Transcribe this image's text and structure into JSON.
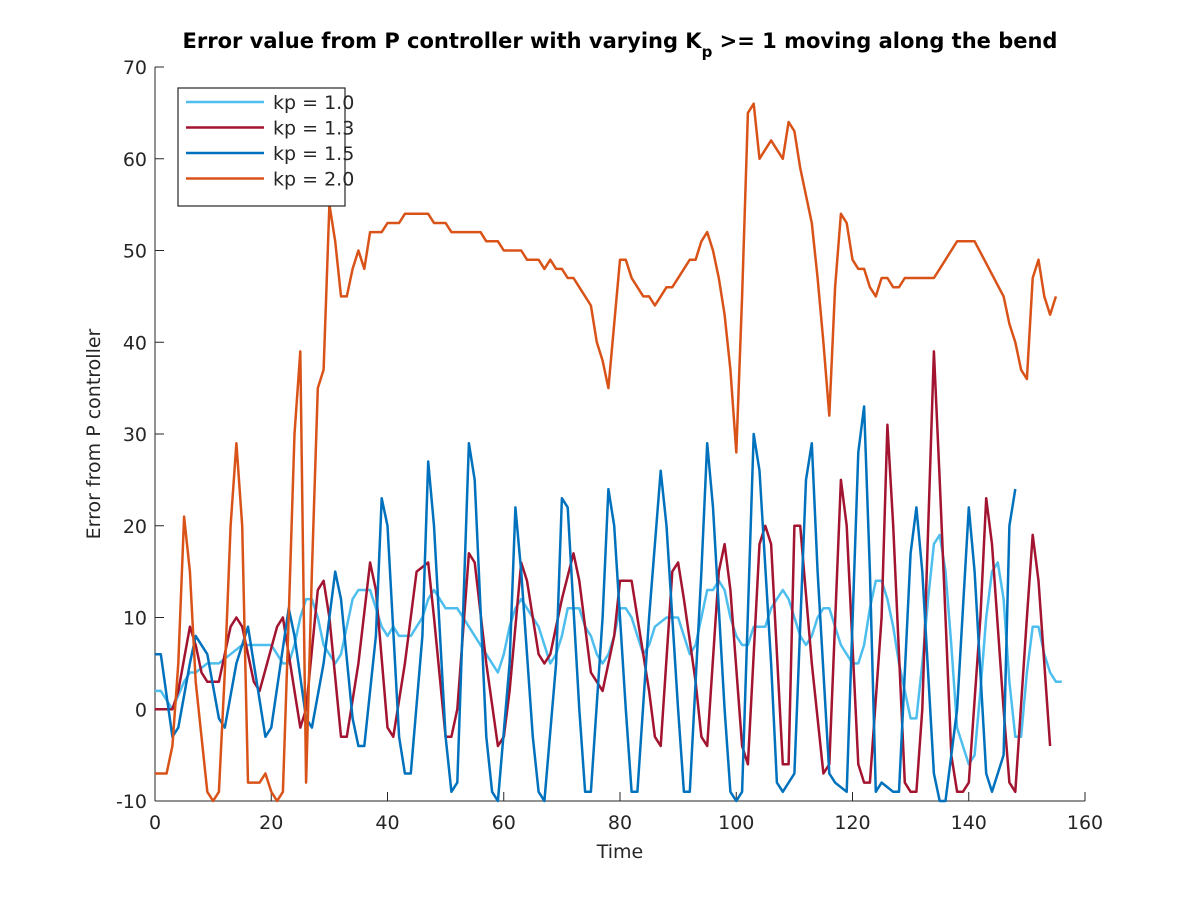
{
  "chart_data": {
    "type": "line",
    "title": [
      "Error value from P controller with varying K",
      "p",
      " >= 1 moving along the bend"
    ],
    "xlabel": "Time",
    "ylabel": "Error from P controller",
    "xlim": [
      0,
      160
    ],
    "xticks": [
      0,
      20,
      40,
      60,
      80,
      100,
      120,
      140,
      160
    ],
    "ylim": [
      -10,
      70
    ],
    "yticks": [
      -10,
      0,
      10,
      20,
      30,
      40,
      50,
      60,
      70
    ],
    "legend": "northwest",
    "series": [
      {
        "name": "kp = 1.0",
        "color": "#4DBEEE",
        "x": [
          0,
          1,
          2,
          3,
          5,
          6,
          7,
          9,
          11,
          13,
          15,
          18,
          20,
          21,
          22,
          23,
          24,
          25,
          26,
          27,
          28,
          29,
          30,
          31,
          32,
          33,
          34,
          35,
          36,
          37,
          38,
          39,
          40,
          41,
          42,
          44,
          46,
          47,
          48,
          49,
          50,
          52,
          53,
          54,
          55,
          57,
          58,
          59,
          60,
          61,
          62,
          63,
          64,
          66,
          67,
          68,
          69,
          70,
          71,
          73,
          74,
          75,
          76,
          77,
          78,
          79,
          80,
          81,
          82,
          83,
          84,
          85,
          86,
          88,
          90,
          91,
          92,
          93,
          94,
          95,
          96,
          97,
          98,
          99,
          100,
          101,
          102,
          103,
          105,
          106,
          107,
          108,
          109,
          110,
          111,
          112,
          113,
          114,
          115,
          116,
          117,
          118,
          119,
          120,
          121,
          122,
          123,
          124,
          125,
          126,
          127,
          128,
          129,
          130,
          131,
          132,
          133,
          134,
          135,
          136,
          137,
          138,
          139,
          140,
          141,
          142,
          143,
          144,
          145,
          146,
          147,
          148,
          149,
          150,
          151,
          152,
          153,
          154,
          155,
          156
        ],
        "values": [
          2,
          2,
          1,
          0,
          3,
          4,
          4,
          5,
          5,
          6,
          7,
          7,
          7,
          6,
          5,
          5,
          7,
          10,
          12,
          12,
          10,
          7,
          6,
          5,
          6,
          9,
          12,
          13,
          13,
          13,
          11,
          9,
          8,
          9,
          8,
          8,
          10,
          12,
          13,
          12,
          11,
          11,
          10,
          9,
          8,
          6,
          5,
          4,
          6,
          9,
          11,
          12,
          11,
          9,
          7,
          5,
          6,
          8,
          11,
          11,
          9,
          8,
          6,
          5,
          6,
          8,
          11,
          11,
          10,
          8,
          6,
          7,
          9,
          10,
          10,
          8,
          6,
          7,
          10,
          13,
          13,
          14,
          13,
          10,
          8,
          7,
          7,
          9,
          9,
          11,
          12,
          13,
          12,
          10,
          8,
          7,
          8,
          10,
          11,
          11,
          9,
          7,
          6,
          5,
          5,
          7,
          11,
          14,
          14,
          12,
          9,
          5,
          2,
          -1,
          -1,
          5,
          12,
          18,
          19,
          15,
          7,
          -2,
          -4,
          -6,
          -5,
          2,
          10,
          15,
          16,
          12,
          3,
          -3,
          -3,
          4,
          9,
          9,
          6,
          4,
          3,
          3
        ]
      },
      {
        "name": "kp = 1.3",
        "color": "#A2142F",
        "x": [
          0,
          3,
          4,
          6,
          7,
          8,
          9,
          11,
          13,
          14,
          15,
          17,
          18,
          21,
          22,
          23,
          25,
          26,
          28,
          29,
          30,
          32,
          33,
          35,
          37,
          38,
          40,
          41,
          43,
          45,
          47,
          48,
          50,
          51,
          52,
          54,
          55,
          57,
          59,
          60,
          61,
          63,
          64,
          66,
          67,
          68,
          70,
          72,
          73,
          75,
          76,
          77,
          79,
          80,
          82,
          83,
          85,
          86,
          87,
          89,
          90,
          91,
          93,
          94,
          95,
          97,
          98,
          99,
          101,
          102,
          104,
          105,
          106,
          108,
          109,
          110,
          111,
          113,
          115,
          116,
          118,
          119,
          121,
          122,
          123,
          125,
          126,
          127,
          129,
          130,
          131,
          132,
          134,
          135,
          137,
          138,
          139,
          140,
          142,
          143,
          144,
          146,
          147,
          148,
          150,
          151,
          152,
          154
        ],
        "values": [
          0,
          0,
          2,
          9,
          7,
          4,
          3,
          3,
          9,
          10,
          9,
          3,
          2,
          9,
          10,
          6,
          -2,
          0,
          13,
          14,
          10,
          -3,
          -3,
          5,
          16,
          13,
          -2,
          -3,
          5,
          15,
          16,
          10,
          -3,
          -3,
          0,
          17,
          16,
          5,
          -4,
          -3,
          2,
          16,
          14,
          6,
          5,
          6,
          12,
          17,
          14,
          4,
          3,
          2,
          8,
          14,
          14,
          10,
          2,
          -3,
          -4,
          15,
          16,
          12,
          3,
          -3,
          -4,
          15,
          18,
          13,
          -4,
          -6,
          18,
          20,
          18,
          -6,
          -6,
          20,
          20,
          5,
          -7,
          -6,
          25,
          20,
          -6,
          -8,
          -8,
          10,
          31,
          20,
          -8,
          -9,
          -9,
          0,
          39,
          25,
          -5,
          -9,
          -9,
          -8,
          10,
          23,
          18,
          0,
          -8,
          -9,
          10,
          19,
          14,
          -4
        ]
      },
      {
        "name": "kp = 1.5",
        "color": "#0072BD",
        "x": [
          0,
          1,
          3,
          4,
          6,
          7,
          9,
          11,
          12,
          14,
          16,
          17,
          19,
          20,
          23,
          24,
          26,
          27,
          29,
          31,
          32,
          34,
          35,
          36,
          38,
          39,
          40,
          42,
          43,
          44,
          46,
          47,
          48,
          50,
          51,
          52,
          54,
          55,
          57,
          58,
          59,
          61,
          62,
          63,
          65,
          66,
          67,
          69,
          70,
          71,
          73,
          74,
          75,
          77,
          78,
          79,
          81,
          82,
          83,
          85,
          87,
          88,
          90,
          91,
          92,
          94,
          95,
          96,
          98,
          99,
          100,
          101,
          103,
          104,
          106,
          107,
          108,
          110,
          112,
          113,
          114,
          116,
          117,
          119,
          121,
          122,
          123,
          124,
          125,
          127,
          128,
          130,
          131,
          132,
          134,
          135,
          136,
          138,
          140,
          141,
          143,
          144,
          146,
          147,
          148
        ],
        "values": [
          6,
          6,
          -3,
          -2,
          5,
          8,
          6,
          -1,
          -2,
          5,
          9,
          5,
          -3,
          -2,
          11,
          8,
          -1,
          -2,
          5,
          15,
          12,
          -1,
          -4,
          -4,
          8,
          23,
          20,
          -3,
          -7,
          -7,
          8,
          27,
          20,
          -3,
          -9,
          -8,
          29,
          25,
          -3,
          -9,
          -10,
          5,
          22,
          15,
          -3,
          -9,
          -10,
          5,
          23,
          22,
          0,
          -9,
          -9,
          10,
          24,
          20,
          0,
          -9,
          -9,
          10,
          26,
          20,
          0,
          -9,
          -9,
          15,
          29,
          22,
          0,
          -9,
          -10,
          -9,
          30,
          26,
          5,
          -8,
          -9,
          -7,
          25,
          29,
          15,
          -7,
          -8,
          -9,
          28,
          33,
          15,
          -9,
          -8,
          -9,
          -9,
          17,
          22,
          15,
          -7,
          -10,
          -10,
          0,
          22,
          15,
          -7,
          -9,
          -5,
          20,
          24
        ]
      },
      {
        "name": "kp = 2.0",
        "color": "#D95319",
        "x": [
          0,
          2,
          3,
          4,
          5,
          6,
          7,
          8,
          9,
          10,
          11,
          12,
          13,
          14,
          15,
          16,
          17,
          18,
          19,
          20,
          21,
          22,
          23,
          24,
          25,
          26,
          27,
          28,
          29,
          30,
          31,
          32,
          33,
          34,
          35,
          36,
          37,
          39,
          40,
          42,
          43,
          47,
          48,
          50,
          51,
          56,
          57,
          59,
          60,
          63,
          64,
          66,
          67,
          68,
          69,
          70,
          71,
          72,
          73,
          75,
          76,
          77,
          78,
          79,
          80,
          81,
          82,
          84,
          85,
          86,
          87,
          88,
          89,
          91,
          92,
          93,
          94,
          95,
          96,
          97,
          98,
          99,
          100,
          101,
          102,
          103,
          104,
          105,
          106,
          107,
          108,
          109,
          110,
          111,
          112,
          113,
          114,
          115,
          116,
          117,
          118,
          119,
          120,
          121,
          122,
          123,
          124,
          125,
          126,
          127,
          128,
          129,
          133,
          134,
          135,
          137,
          138,
          141,
          146,
          147,
          148,
          149,
          150,
          151,
          152,
          153,
          154,
          155
        ],
        "values": [
          -7,
          -7,
          -4,
          5,
          21,
          15,
          3,
          -3,
          -9,
          -10,
          -9,
          4,
          20,
          29,
          20,
          -8,
          -8,
          -8,
          -7,
          -9,
          -10,
          -9,
          10,
          30,
          39,
          -8,
          15,
          35,
          37,
          55,
          51,
          45,
          45,
          48,
          50,
          48,
          52,
          52,
          53,
          53,
          54,
          54,
          53,
          53,
          52,
          52,
          51,
          51,
          50,
          50,
          49,
          49,
          48,
          49,
          48,
          48,
          47,
          47,
          46,
          44,
          40,
          38,
          35,
          42,
          49,
          49,
          47,
          45,
          45,
          44,
          45,
          46,
          46,
          48,
          49,
          49,
          51,
          52,
          50,
          47,
          43,
          37,
          28,
          45,
          65,
          66,
          60,
          61,
          62,
          61,
          60,
          64,
          63,
          59,
          56,
          53,
          47,
          40,
          32,
          46,
          54,
          53,
          49,
          48,
          48,
          46,
          45,
          47,
          47,
          46,
          46,
          47,
          47,
          47,
          48,
          50,
          51,
          51,
          45,
          42,
          40,
          37,
          36,
          47,
          49,
          45,
          43,
          45
        ]
      }
    ]
  }
}
